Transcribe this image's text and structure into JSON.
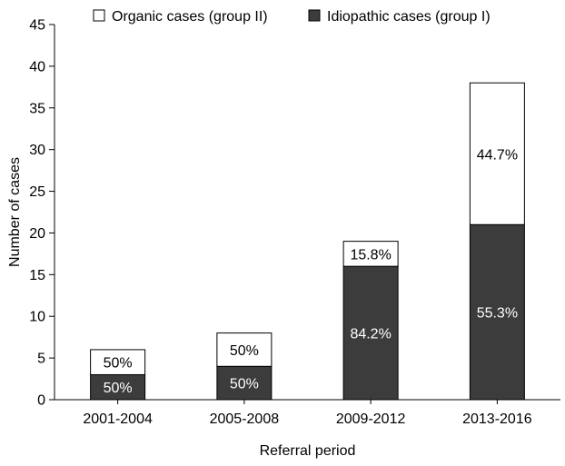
{
  "chart_data": {
    "type": "bar",
    "stacked": true,
    "categories": [
      "2001-2004",
      "2005-2008",
      "2009-2012",
      "2013-2016"
    ],
    "series": [
      {
        "name": "Idiopathic cases (group I)",
        "values": [
          3,
          4,
          16,
          21
        ],
        "labels": [
          "50%",
          "50%",
          "84.2%",
          "55.3%"
        ],
        "color": "#3c3c3c",
        "label_color": "#ffffff"
      },
      {
        "name": "Organic cases (group II)",
        "values": [
          3,
          4,
          3,
          17
        ],
        "labels": [
          "50%",
          "50%",
          "15.8%",
          "44.7%"
        ],
        "color": "#ffffff",
        "label_color": "#000000"
      }
    ],
    "xlabel": "Referral period",
    "ylabel": "Number of cases",
    "ylim": [
      0,
      45
    ],
    "yticks": [
      0,
      5,
      10,
      15,
      20,
      25,
      30,
      35,
      40,
      45
    ],
    "grid": false,
    "legend_position": "top",
    "legend_order": [
      "Organic cases (group II)",
      "Idiopathic cases (group I)"
    ]
  }
}
